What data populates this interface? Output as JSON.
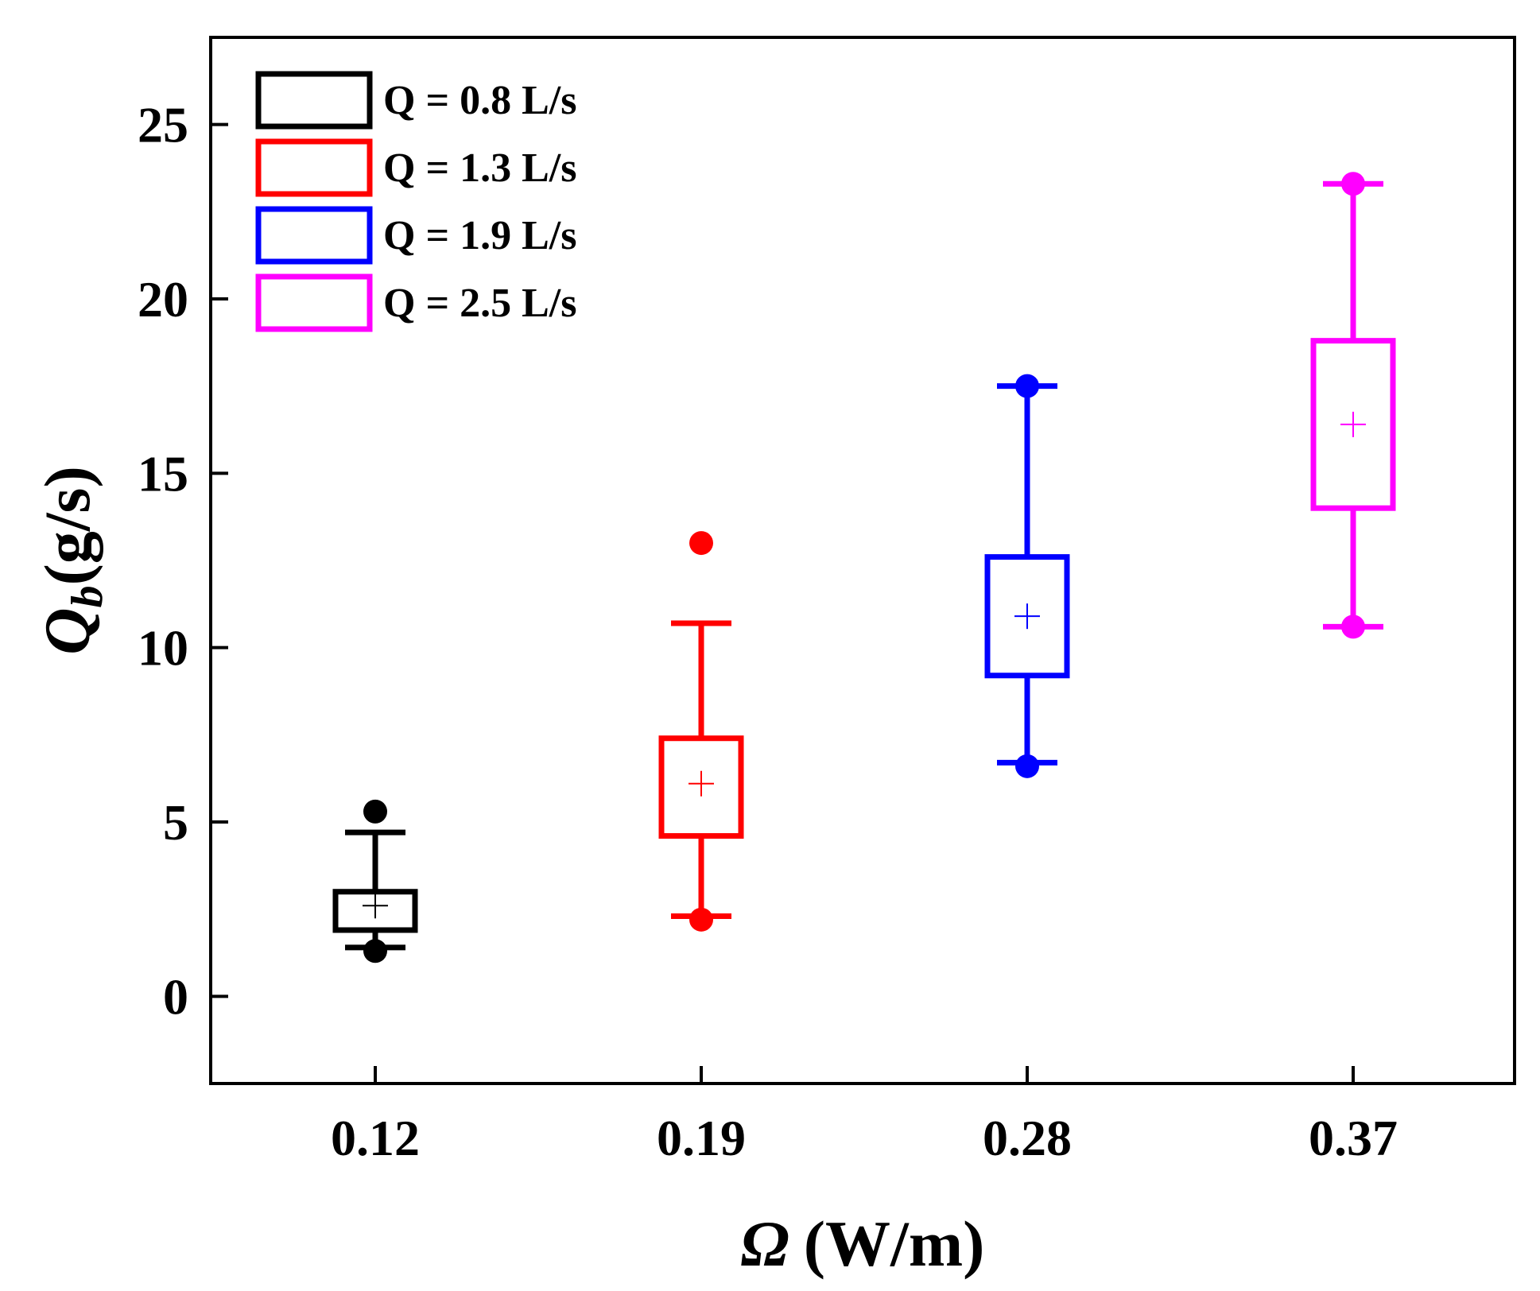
{
  "chart_data": {
    "type": "box",
    "title": "",
    "xlabel_symbol": "Ω",
    "xlabel_unit": "(W/m)",
    "ylabel_symbol": "Q",
    "ylabel_subscript": "b",
    "ylabel_unit": "(g/s)",
    "categories": [
      "0.12",
      "0.19",
      "0.28",
      "0.37"
    ],
    "ylim": [
      -2.5,
      27.5
    ],
    "yticks": [
      0,
      5,
      10,
      15,
      20,
      25
    ],
    "ytick_labels": [
      "0",
      "5",
      "10",
      "15",
      "20",
      "25"
    ],
    "legend_position": "top-left",
    "series": [
      {
        "name": "Q = 0.8 L/s",
        "color": "#000000",
        "q1": 1.9,
        "q3": 3.0,
        "mean": 2.6,
        "whisker_low": 1.4,
        "whisker_high": 4.7,
        "outliers": [
          5.3,
          1.3
        ]
      },
      {
        "name": "Q = 1.3 L/s",
        "color": "#ff0000",
        "q1": 4.6,
        "q3": 7.4,
        "mean": 6.1,
        "whisker_low": 2.3,
        "whisker_high": 10.7,
        "outliers": [
          13.0,
          2.2
        ]
      },
      {
        "name": "Q = 1.9 L/s",
        "color": "#0000ff",
        "q1": 9.2,
        "q3": 12.6,
        "mean": 10.9,
        "whisker_low": 6.7,
        "whisker_high": 17.5,
        "outliers": [
          17.5,
          6.6
        ]
      },
      {
        "name": "Q = 2.5 L/s",
        "color": "#ff00ff",
        "q1": 14.0,
        "q3": 18.8,
        "mean": 16.4,
        "whisker_low": 10.6,
        "whisker_high": 23.3,
        "outliers": [
          23.3,
          10.6
        ]
      }
    ]
  }
}
